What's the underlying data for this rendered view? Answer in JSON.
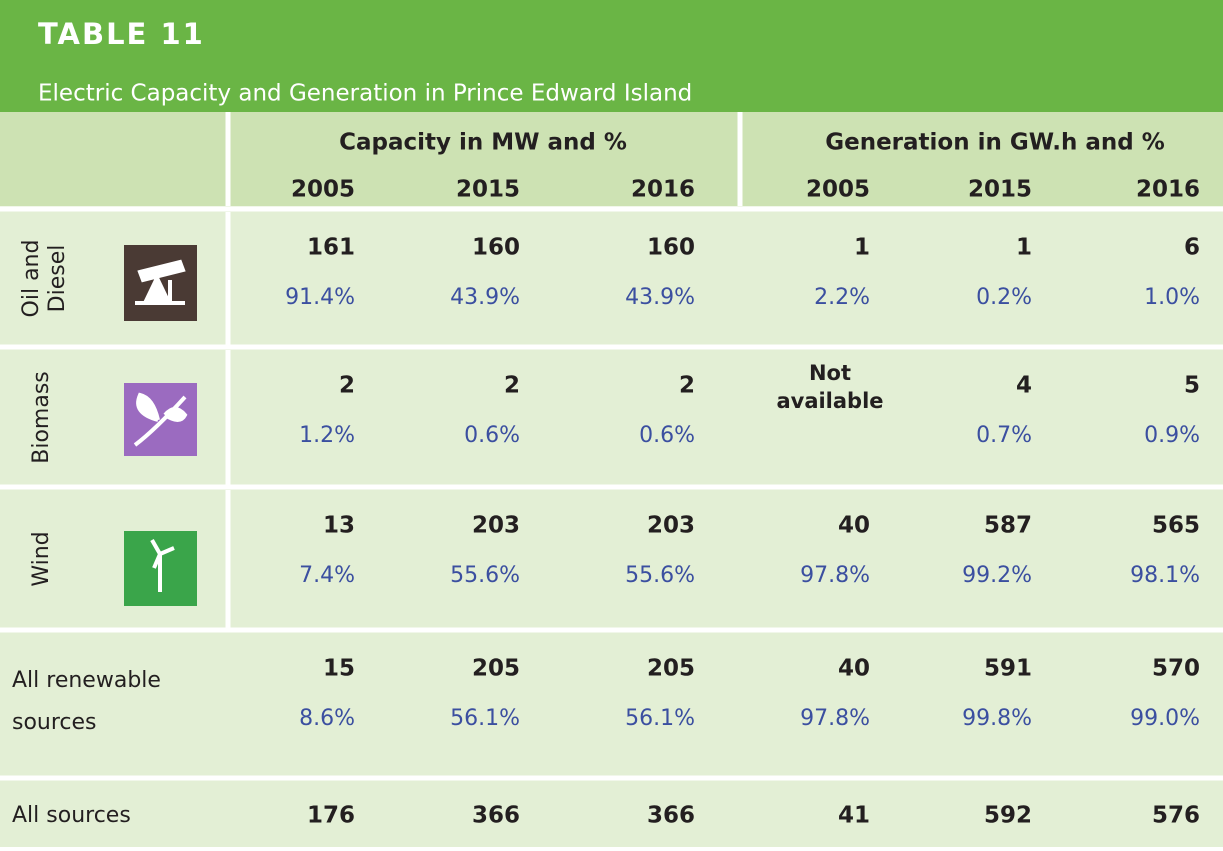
{
  "header": {
    "title": "TABLE 11",
    "subtitle": "Electric Capacity and Generation in Prince Edward Island"
  },
  "table": {
    "groups": [
      "Capacity in MW and %",
      "Generation in GW.h and %"
    ],
    "years": [
      "2005",
      "2015",
      "2016",
      "2005",
      "2015",
      "2016"
    ],
    "rows": [
      {
        "label": [
          "Oil and",
          "Diesel"
        ],
        "values": [
          161,
          160,
          160,
          1,
          1,
          6
        ],
        "percents": [
          "91.4%",
          "43.9%",
          "43.9%",
          "2.2%",
          "0.2%",
          "1.0%"
        ]
      },
      {
        "label": [
          "Biomass"
        ],
        "values": [
          2,
          2,
          2,
          "Not available",
          4,
          5
        ],
        "percents": [
          "1.2%",
          "0.6%",
          "0.6%",
          null,
          "0.7%",
          "0.9%"
        ]
      },
      {
        "label": [
          "Wind"
        ],
        "values": [
          13,
          203,
          203,
          40,
          587,
          565
        ],
        "percents": [
          "7.4%",
          "55.6%",
          "55.6%",
          "97.8%",
          "99.2%",
          "98.1%"
        ]
      },
      {
        "label": [
          "All renewable",
          "sources"
        ],
        "values": [
          15,
          205,
          205,
          40,
          591,
          570
        ],
        "percents": [
          "8.6%",
          "56.1%",
          "56.1%",
          "97.8%",
          "99.8%",
          "99.0%"
        ]
      },
      {
        "label": [
          "All sources"
        ],
        "values": [
          176,
          366,
          366,
          41,
          592,
          576
        ],
        "percents": null
      }
    ]
  }
}
